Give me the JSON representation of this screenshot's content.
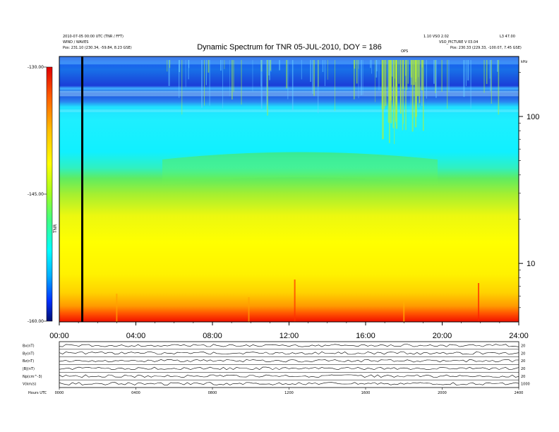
{
  "header": {
    "left_line1": "2010-07-05 00:00 UTC (TNR / FFT)",
    "left_line2": "WIND / WAVES",
    "left_line3": "Pos:  231.10 (230.34, -59.84, 8.23 GSE)",
    "right_line1": "1.10 VSO 2.02",
    "right_line2": "VSO_PICTURE  V 03.04",
    "right_line3": "Pos:  230.33 (229.33, -100.07, 7.45 GSE)",
    "right_corner": "L3 47.00",
    "marker_label": "OPS"
  },
  "chart_data": {
    "type": "heatmap",
    "title": "Dynamic Spectrum for TNR 05-JUL-2010, DOY = 186",
    "x_tick_labels": [
      "00:00",
      "04:00",
      "08:00",
      "12:00",
      "16:00",
      "20:00",
      "24:00"
    ],
    "x_ticks_hours": [
      0,
      4,
      8,
      12,
      16,
      20,
      24
    ],
    "x_range_hours": [
      0,
      24
    ],
    "y_scale": "log",
    "y_units": "kHz",
    "y_tick_labels": [
      "100",
      "10"
    ],
    "y_ticks": [
      100,
      10
    ],
    "y_range": [
      4,
      256
    ],
    "colorbar": {
      "label": "TNR",
      "range": [
        -160,
        -130
      ],
      "tick_labels": [
        "-130.00",
        "-145.00",
        "-160.00"
      ],
      "ticks": [
        -130,
        -145,
        -160
      ],
      "colors": [
        "#001070",
        "#0030ff",
        "#00b0ff",
        "#00ffff",
        "#40ff80",
        "#a0ff20",
        "#ffff00",
        "#ffc000",
        "#ff6000",
        "#ff0000",
        "#c00000"
      ]
    },
    "vertical_marker_hour": 1.2,
    "lower_panels": {
      "labels": [
        "Bx(nT)",
        "By(nT)",
        "Bz(nT)",
        "|B|(nT)",
        "Np(cm^-3)",
        "V(km/s)"
      ],
      "right_labels": [
        "20",
        "20",
        "20",
        "20",
        "20",
        "1000"
      ],
      "x_tick_labels": [
        "0000",
        "0400",
        "0800",
        "1200",
        "1600",
        "2000",
        "2400"
      ],
      "footer_label": "Hours   UTC"
    }
  }
}
